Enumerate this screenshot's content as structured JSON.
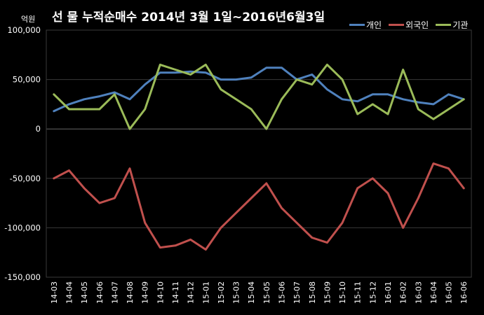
{
  "chart_data": {
    "type": "line",
    "title": "선 물 누적순매수 2014년 3월 1일~2016년6월3일",
    "unit_label": "억원",
    "ylim": [
      -150000,
      100000
    ],
    "yticks": [
      "100,000",
      "50,000",
      "0",
      "-50,000",
      "-100,000",
      "-150,000"
    ],
    "ytick_values": [
      100000,
      50000,
      0,
      -50000,
      -100000,
      -150000
    ],
    "categories": [
      "14-03",
      "14-04",
      "14-05",
      "14-06",
      "14-07",
      "14-08",
      "14-09",
      "14-10",
      "14-11",
      "14-12",
      "15-01",
      "15-02",
      "15-03",
      "15-04",
      "15-05",
      "15-06",
      "15-07",
      "15-08",
      "15-09",
      "15-10",
      "15-11",
      "15-12",
      "16-01",
      "16-02",
      "16-03",
      "16-04",
      "16-05",
      "16-06"
    ],
    "grid": true,
    "legend": "top-right",
    "series": [
      {
        "name": "개인",
        "color": "#4f81bd",
        "values": [
          18000,
          25000,
          30000,
          33000,
          37000,
          30000,
          45000,
          57000,
          57000,
          58000,
          57000,
          50000,
          50000,
          52000,
          62000,
          62000,
          50000,
          55000,
          40000,
          30000,
          28000,
          35000,
          35000,
          30000,
          27000,
          25000,
          35000,
          30000
        ]
      },
      {
        "name": "외국인",
        "color": "#c0504d",
        "values": [
          -50000,
          -42000,
          -60000,
          -75000,
          -70000,
          -40000,
          -95000,
          -120000,
          -118000,
          -112000,
          -122000,
          -100000,
          -85000,
          -70000,
          -55000,
          -80000,
          -95000,
          -110000,
          -115000,
          -95000,
          -60000,
          -50000,
          -65000,
          -100000,
          -70000,
          -35000,
          -40000,
          -60000
        ]
      },
      {
        "name": "기관",
        "color": "#9bbb59",
        "values": [
          35000,
          20000,
          20000,
          20000,
          35000,
          0,
          20000,
          65000,
          60000,
          55000,
          65000,
          40000,
          30000,
          20000,
          0,
          30000,
          50000,
          45000,
          65000,
          50000,
          15000,
          25000,
          15000,
          60000,
          20000,
          10000,
          20000,
          30000
        ]
      }
    ]
  }
}
